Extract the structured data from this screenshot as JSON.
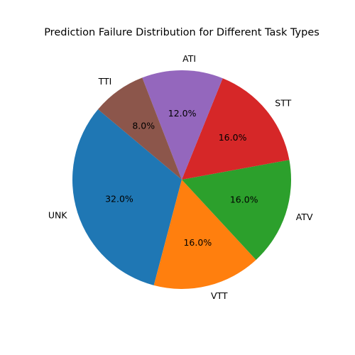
{
  "chart_data": {
    "type": "pie",
    "title": "Prediction Failure Distribution for Different Task Types",
    "categories": [
      "UNK",
      "VTT",
      "ATV",
      "STT",
      "ATI",
      "TTI"
    ],
    "values": [
      32.0,
      16.0,
      16.0,
      16.0,
      12.0,
      8.0
    ],
    "percent_labels": [
      "32.0%",
      "16.0%",
      "16.0%",
      "16.0%",
      "12.0%",
      "8.0%"
    ],
    "colors": [
      "#1f77b4",
      "#ff7f0e",
      "#2ca02c",
      "#d62728",
      "#9467bd",
      "#8c564b"
    ],
    "start_angle_deg": 140,
    "direction": "counterclockwise",
    "legend": "none"
  }
}
